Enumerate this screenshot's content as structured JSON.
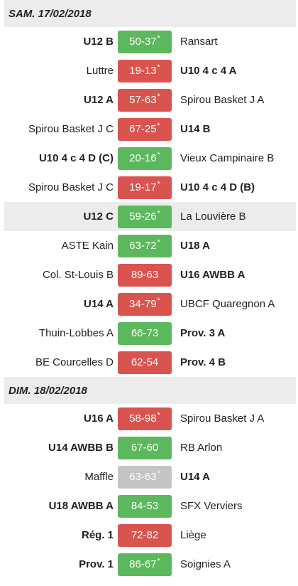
{
  "colors": {
    "win": "#5cb85c",
    "loss": "#d9534f",
    "draw": "#c4c4c4",
    "header_bg": "#ececec"
  },
  "days": [
    {
      "title": "SAM. 17/02/2018",
      "matches": [
        {
          "home": "U12 B",
          "score": "50-37",
          "star": "*",
          "away": "Ransart",
          "bold": "home",
          "result": "green",
          "highlight": false
        },
        {
          "home": "Luttre",
          "score": "19-13",
          "star": "*",
          "away": "U10 4 c 4 A",
          "bold": "away",
          "result": "red",
          "highlight": false
        },
        {
          "home": "U12 A",
          "score": "57-63",
          "star": "*",
          "away": "Spirou Basket J A",
          "bold": "home",
          "result": "red",
          "highlight": false
        },
        {
          "home": "Spirou Basket J C",
          "score": "67-25",
          "star": "*",
          "away": "U14 B",
          "bold": "away",
          "result": "red",
          "highlight": false
        },
        {
          "home": "U10 4 c 4 D (C)",
          "score": "20-16",
          "star": "*",
          "away": "Vieux Campinaire B",
          "bold": "home",
          "result": "green",
          "highlight": false
        },
        {
          "home": "Spirou Basket J C",
          "score": "19-17",
          "star": "*",
          "away": "U10 4 c 4 D (B)",
          "bold": "away",
          "result": "red",
          "highlight": false
        },
        {
          "home": "U12 C",
          "score": "59-26",
          "star": "*",
          "away": "La Louvière B",
          "bold": "home",
          "result": "green",
          "highlight": true
        },
        {
          "home": "ASTE Kain",
          "score": "63-72",
          "star": "*",
          "away": "U18 A",
          "bold": "away",
          "result": "green",
          "highlight": false
        },
        {
          "home": "Col. St-Louis B",
          "score": "89-63",
          "star": "",
          "away": "U16 AWBB A",
          "bold": "away",
          "result": "red",
          "highlight": false
        },
        {
          "home": "U14 A",
          "score": "34-79",
          "star": "*",
          "away": "UBCF Quaregnon A",
          "bold": "home",
          "result": "red",
          "highlight": false
        },
        {
          "home": "Thuin-Lobbes A",
          "score": "66-73",
          "star": "",
          "away": "Prov. 3 A",
          "bold": "away",
          "result": "green",
          "highlight": false
        },
        {
          "home": "BE Courcelles D",
          "score": "62-54",
          "star": "",
          "away": "Prov. 4 B",
          "bold": "away",
          "result": "red",
          "highlight": false
        }
      ]
    },
    {
      "title": "DIM. 18/02/2018",
      "matches": [
        {
          "home": "U16 A",
          "score": "58-98",
          "star": "*",
          "away": "Spirou Basket J A",
          "bold": "home",
          "result": "red",
          "highlight": false
        },
        {
          "home": "U14 AWBB B",
          "score": "67-60",
          "star": "",
          "away": "RB Arlon",
          "bold": "home",
          "result": "green",
          "highlight": false
        },
        {
          "home": "Maffle",
          "score": "63-63",
          "star": "*",
          "away": "U14 A",
          "bold": "away",
          "result": "grey",
          "highlight": false
        },
        {
          "home": "U18 AWBB A",
          "score": "84-53",
          "star": "",
          "away": "SFX Verviers",
          "bold": "home",
          "result": "green",
          "highlight": false
        },
        {
          "home": "Rég. 1",
          "score": "72-82",
          "star": "",
          "away": "Liège",
          "bold": "home",
          "result": "red",
          "highlight": false
        },
        {
          "home": "Prov. 1",
          "score": "86-67",
          "star": "*",
          "away": "Soignies A",
          "bold": "home",
          "result": "green",
          "highlight": false
        }
      ]
    }
  ]
}
